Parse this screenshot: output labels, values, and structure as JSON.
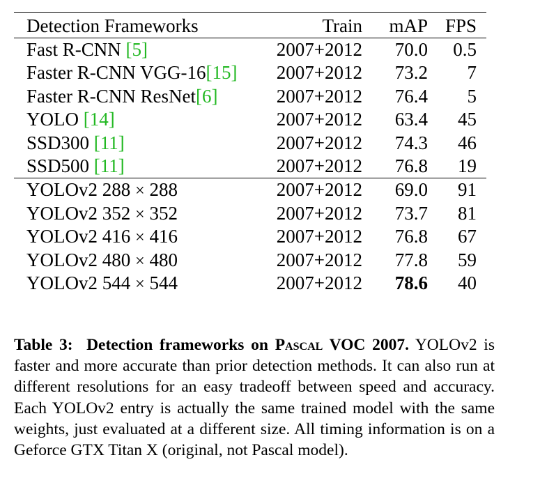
{
  "table": {
    "columns": {
      "name": "Detection Frameworks",
      "train": "Train",
      "map": "mAP",
      "fps": "FPS"
    },
    "group1": [
      {
        "name": "Fast R-CNN ",
        "cite": "[5]",
        "train": "2007+2012",
        "map": "70.0",
        "fps": "0.5"
      },
      {
        "name": "Faster R-CNN VGG-16",
        "cite": "[15]",
        "train": "2007+2012",
        "map": "73.2",
        "fps": "7"
      },
      {
        "name": "Faster R-CNN ResNet",
        "cite": "[6]",
        "train": "2007+2012",
        "map": "76.4",
        "fps": "5"
      },
      {
        "name": "YOLO ",
        "cite": "[14]",
        "train": "2007+2012",
        "map": "63.4",
        "fps": "45"
      },
      {
        "name": "SSD300 ",
        "cite": "[11]",
        "train": "2007+2012",
        "map": "74.3",
        "fps": "46"
      },
      {
        "name": "SSD500 ",
        "cite": "[11]",
        "train": "2007+2012",
        "map": "76.8",
        "fps": "19"
      }
    ],
    "group2": [
      {
        "model": "YOLOv2 ",
        "w": "288",
        "times": "×",
        "h": "288",
        "train": "2007+2012",
        "map": "69.0",
        "fps": "91"
      },
      {
        "model": "YOLOv2 ",
        "w": "352",
        "times": "×",
        "h": "352",
        "train": "2007+2012",
        "map": "73.7",
        "fps": "81"
      },
      {
        "model": "YOLOv2 ",
        "w": "416",
        "times": "×",
        "h": "416",
        "train": "2007+2012",
        "map": "76.8",
        "fps": "67"
      },
      {
        "model": "YOLOv2 ",
        "w": "480",
        "times": "×",
        "h": "480",
        "train": "2007+2012",
        "map": "77.8",
        "fps": "59"
      },
      {
        "model": "YOLOv2 ",
        "w": "544",
        "times": "×",
        "h": "544",
        "train": "2007+2012",
        "map": "78.6",
        "fps": "40"
      }
    ]
  },
  "caption": {
    "label": "Table 3:",
    "title_pre": "Detection frameworks on ",
    "title_sc": "Pascal",
    "title_post": " VOC 2007.",
    "body": "YOLOv2 is faster and more accurate than prior detection methods. It can also run at different resolutions for an easy tradeoff between speed and accuracy. Each YOLOv2 entry is actually the same trained model with the same weights, just evaluated at a different size. All timing information is on a Geforce GTX Titan X (original, not Pascal model)."
  }
}
